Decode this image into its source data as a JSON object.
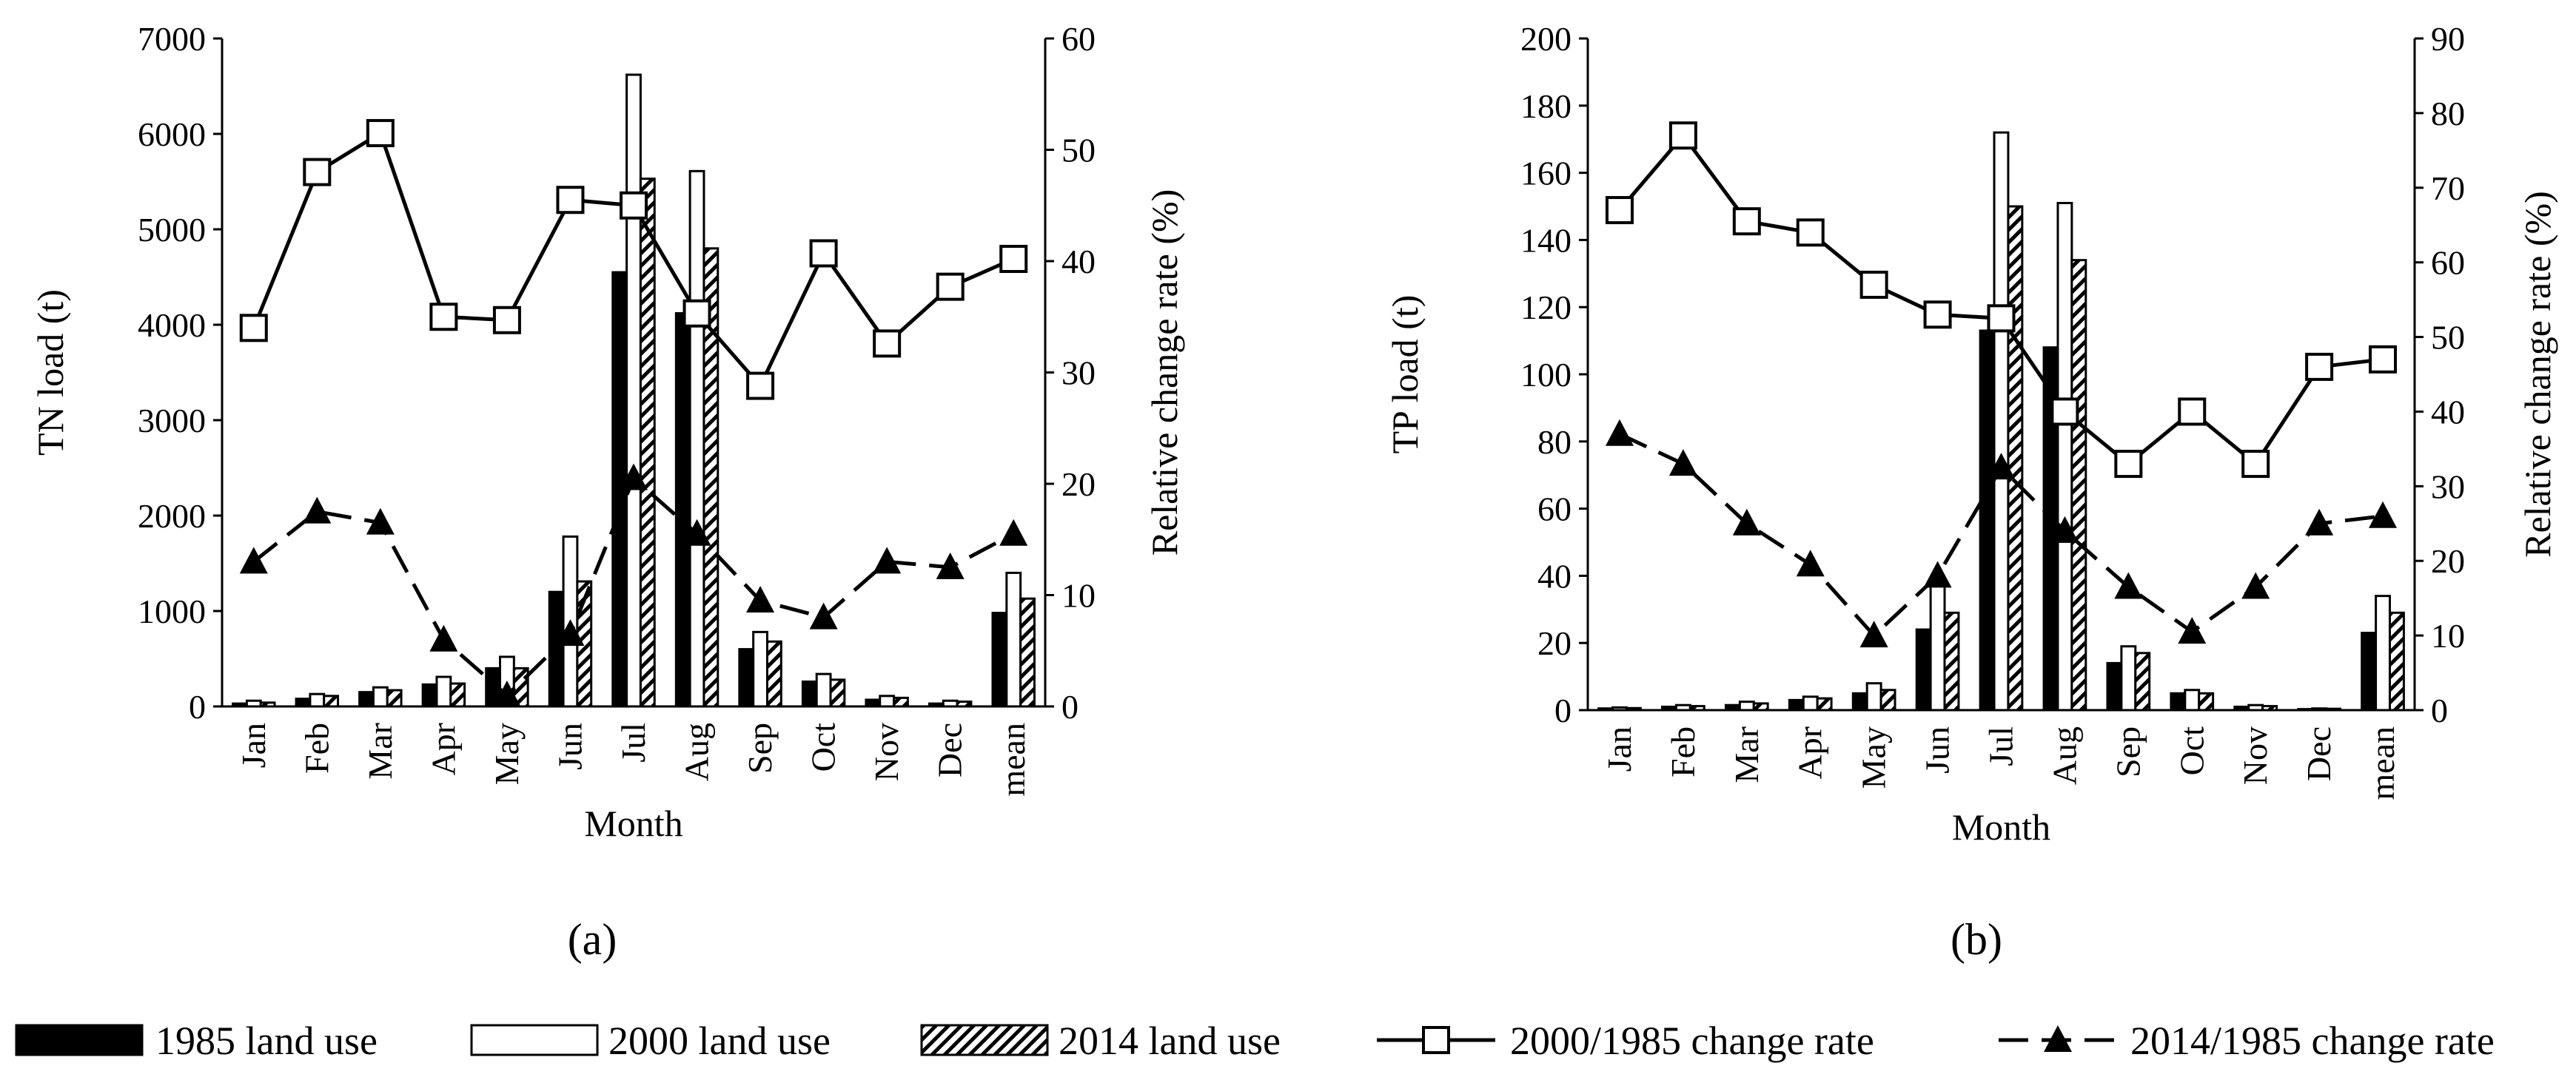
{
  "legend": {
    "items": [
      {
        "label": "1985 land use"
      },
      {
        "label": "2000 land use"
      },
      {
        "label": "2014 land use"
      },
      {
        "label": "2000/1985 change rate"
      },
      {
        "label": "2014/1985 change rate"
      }
    ]
  },
  "chart_data": [
    {
      "panel_label": "(a)",
      "type": "bar+line",
      "categories": [
        "Jan",
        "Feb",
        "Mar",
        "Apr",
        "May",
        "Jun",
        "Jul",
        "Aug",
        "Sep",
        "Oct",
        "Nov",
        "Dec",
        "mean"
      ],
      "xlabel": "Month",
      "ylabel": "TN load (t)",
      "y2label": "Relative change rate (%)",
      "ylim": [
        0,
        7000
      ],
      "y_ticks": [
        0,
        1000,
        2000,
        3000,
        4000,
        5000,
        6000,
        7000
      ],
      "y2lim": [
        0,
        60
      ],
      "y2_ticks": [
        0,
        10,
        20,
        30,
        40,
        50,
        60
      ],
      "bar_series": [
        {
          "name": "1985 land use",
          "values": [
            30,
            80,
            150,
            230,
            400,
            1200,
            4550,
            4120,
            600,
            260,
            70,
            30,
            980
          ]
        },
        {
          "name": "2000 land use",
          "values": [
            60,
            130,
            200,
            310,
            520,
            1780,
            6620,
            5610,
            780,
            340,
            110,
            60,
            1400
          ]
        },
        {
          "name": "2014 land use",
          "values": [
            40,
            110,
            170,
            240,
            400,
            1310,
            5530,
            4800,
            680,
            280,
            90,
            50,
            1130
          ]
        }
      ],
      "line_series": [
        {
          "name": "2000/1985 change rate",
          "values": [
            34,
            48,
            51.5,
            35,
            34.7,
            45.5,
            45,
            35.3,
            28.8,
            40.7,
            32.6,
            37.7,
            40.2
          ]
        },
        {
          "name": "2014/1985 change rate",
          "values": [
            13,
            17.5,
            16.5,
            6,
            1,
            6.5,
            20.5,
            15.5,
            9.5,
            8,
            13,
            12.5,
            15.5
          ]
        }
      ]
    },
    {
      "panel_label": "(b)",
      "type": "bar+line",
      "categories": [
        "Jan",
        "Feb",
        "Mar",
        "Apr",
        "May",
        "Jun",
        "Jul",
        "Aug",
        "Sep",
        "Oct",
        "Nov",
        "Dec",
        "mean"
      ],
      "xlabel": "Month",
      "ylabel": "TP load (t)",
      "y2label": "Relative change rate (%)",
      "ylim": [
        0,
        200
      ],
      "y_ticks": [
        0,
        20,
        40,
        60,
        80,
        100,
        120,
        140,
        160,
        180,
        200
      ],
      "y2lim": [
        0,
        90
      ],
      "y2_ticks": [
        0,
        10,
        20,
        30,
        40,
        50,
        60,
        70,
        80,
        90
      ],
      "bar_series": [
        {
          "name": "1985 land use",
          "values": [
            0.5,
            1,
            1.5,
            3,
            5,
            24,
            113,
            108,
            14,
            5,
            1,
            0.3,
            23
          ]
        },
        {
          "name": "2000 land use",
          "values": [
            0.8,
            1.5,
            2.5,
            4,
            8,
            37,
            172,
            151,
            19,
            6,
            1.5,
            0.5,
            34
          ]
        },
        {
          "name": "2014 land use",
          "values": [
            0.6,
            1.2,
            2,
            3.5,
            6,
            29,
            150,
            134,
            17,
            5,
            1.2,
            0.4,
            29
          ]
        }
      ],
      "line_series": [
        {
          "name": "2000/1985 change rate",
          "values": [
            67,
            77,
            65.5,
            64,
            57,
            53,
            52.5,
            40,
            33,
            40,
            33,
            46,
            47
          ]
        },
        {
          "name": "2014/1985 change rate",
          "values": [
            37,
            33,
            25,
            19.5,
            10,
            18,
            32.5,
            24,
            16.5,
            10.5,
            16.5,
            25,
            26
          ]
        }
      ]
    }
  ]
}
